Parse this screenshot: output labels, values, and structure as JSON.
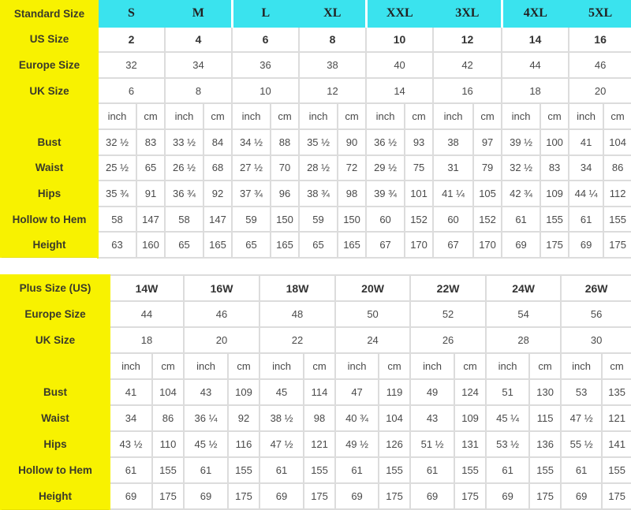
{
  "standard": {
    "header_label": "Standard Size",
    "sizes": [
      "S",
      "M",
      "L",
      "XL",
      "XXL",
      "3XL",
      "4XL",
      "5XL"
    ],
    "rows": [
      {
        "label": "US Size",
        "values": [
          "2",
          "4",
          "6",
          "8",
          "10",
          "12",
          "14",
          "16"
        ]
      },
      {
        "label": "Europe Size",
        "values": [
          "32",
          "34",
          "36",
          "38",
          "40",
          "42",
          "44",
          "46"
        ]
      },
      {
        "label": "UK Size",
        "values": [
          "6",
          "8",
          "10",
          "12",
          "14",
          "16",
          "18",
          "20"
        ]
      }
    ],
    "units": {
      "inch": "inch",
      "cm": "cm"
    },
    "measurements": [
      {
        "label": "Bust",
        "values": [
          [
            "32 ½",
            "83"
          ],
          [
            "33 ½",
            "84"
          ],
          [
            "34 ½",
            "88"
          ],
          [
            "35 ½",
            "90"
          ],
          [
            "36 ½",
            "93"
          ],
          [
            "38",
            "97"
          ],
          [
            "39 ½",
            "100"
          ],
          [
            "41",
            "104"
          ]
        ]
      },
      {
        "label": "Waist",
        "values": [
          [
            "25 ½",
            "65"
          ],
          [
            "26 ½",
            "68"
          ],
          [
            "27 ½",
            "70"
          ],
          [
            "28 ½",
            "72"
          ],
          [
            "29 ½",
            "75"
          ],
          [
            "31",
            "79"
          ],
          [
            "32 ½",
            "83"
          ],
          [
            "34",
            "86"
          ]
        ]
      },
      {
        "label": "Hips",
        "values": [
          [
            "35 ¾",
            "91"
          ],
          [
            "36 ¾",
            "92"
          ],
          [
            "37 ¾",
            "96"
          ],
          [
            "38 ¾",
            "98"
          ],
          [
            "39 ¾",
            "101"
          ],
          [
            "41 ¼",
            "105"
          ],
          [
            "42 ¾",
            "109"
          ],
          [
            "44 ¼",
            "112"
          ]
        ]
      },
      {
        "label": "Hollow to Hem",
        "values": [
          [
            "58",
            "147"
          ],
          [
            "58",
            "147"
          ],
          [
            "59",
            "150"
          ],
          [
            "59",
            "150"
          ],
          [
            "60",
            "152"
          ],
          [
            "60",
            "152"
          ],
          [
            "61",
            "155"
          ],
          [
            "61",
            "155"
          ]
        ]
      },
      {
        "label": "Height",
        "values": [
          [
            "63",
            "160"
          ],
          [
            "65",
            "165"
          ],
          [
            "65",
            "165"
          ],
          [
            "65",
            "165"
          ],
          [
            "67",
            "170"
          ],
          [
            "67",
            "170"
          ],
          [
            "69",
            "175"
          ],
          [
            "69",
            "175"
          ]
        ]
      }
    ]
  },
  "plus": {
    "header_label": "Plus Size (US)",
    "sizes": [
      "14W",
      "16W",
      "18W",
      "20W",
      "22W",
      "24W",
      "26W"
    ],
    "rows": [
      {
        "label": "Europe Size",
        "values": [
          "44",
          "46",
          "48",
          "50",
          "52",
          "54",
          "56"
        ]
      },
      {
        "label": "UK Size",
        "values": [
          "18",
          "20",
          "22",
          "24",
          "26",
          "28",
          "30"
        ]
      }
    ],
    "units": {
      "inch": "inch",
      "cm": "cm"
    },
    "measurements": [
      {
        "label": "Bust",
        "values": [
          [
            "41",
            "104"
          ],
          [
            "43",
            "109"
          ],
          [
            "45",
            "114"
          ],
          [
            "47",
            "119"
          ],
          [
            "49",
            "124"
          ],
          [
            "51",
            "130"
          ],
          [
            "53",
            "135"
          ]
        ]
      },
      {
        "label": "Waist",
        "values": [
          [
            "34",
            "86"
          ],
          [
            "36 ¼",
            "92"
          ],
          [
            "38 ½",
            "98"
          ],
          [
            "40 ¾",
            "104"
          ],
          [
            "43",
            "109"
          ],
          [
            "45 ¼",
            "115"
          ],
          [
            "47 ½",
            "121"
          ]
        ]
      },
      {
        "label": "Hips",
        "values": [
          [
            "43 ½",
            "110"
          ],
          [
            "45 ½",
            "116"
          ],
          [
            "47 ½",
            "121"
          ],
          [
            "49 ½",
            "126"
          ],
          [
            "51 ½",
            "131"
          ],
          [
            "53 ½",
            "136"
          ],
          [
            "55 ½",
            "141"
          ]
        ]
      },
      {
        "label": "Hollow to Hem",
        "values": [
          [
            "61",
            "155"
          ],
          [
            "61",
            "155"
          ],
          [
            "61",
            "155"
          ],
          [
            "61",
            "155"
          ],
          [
            "61",
            "155"
          ],
          [
            "61",
            "155"
          ],
          [
            "61",
            "155"
          ]
        ]
      },
      {
        "label": "Height",
        "values": [
          [
            "69",
            "175"
          ],
          [
            "69",
            "175"
          ],
          [
            "69",
            "175"
          ],
          [
            "69",
            "175"
          ],
          [
            "69",
            "175"
          ],
          [
            "69",
            "175"
          ],
          [
            "69",
            "175"
          ]
        ]
      }
    ]
  },
  "colors": {
    "label_bg": "#f8f200",
    "header_bg": "#3ae3ee",
    "grid": "#dcdcdc"
  }
}
